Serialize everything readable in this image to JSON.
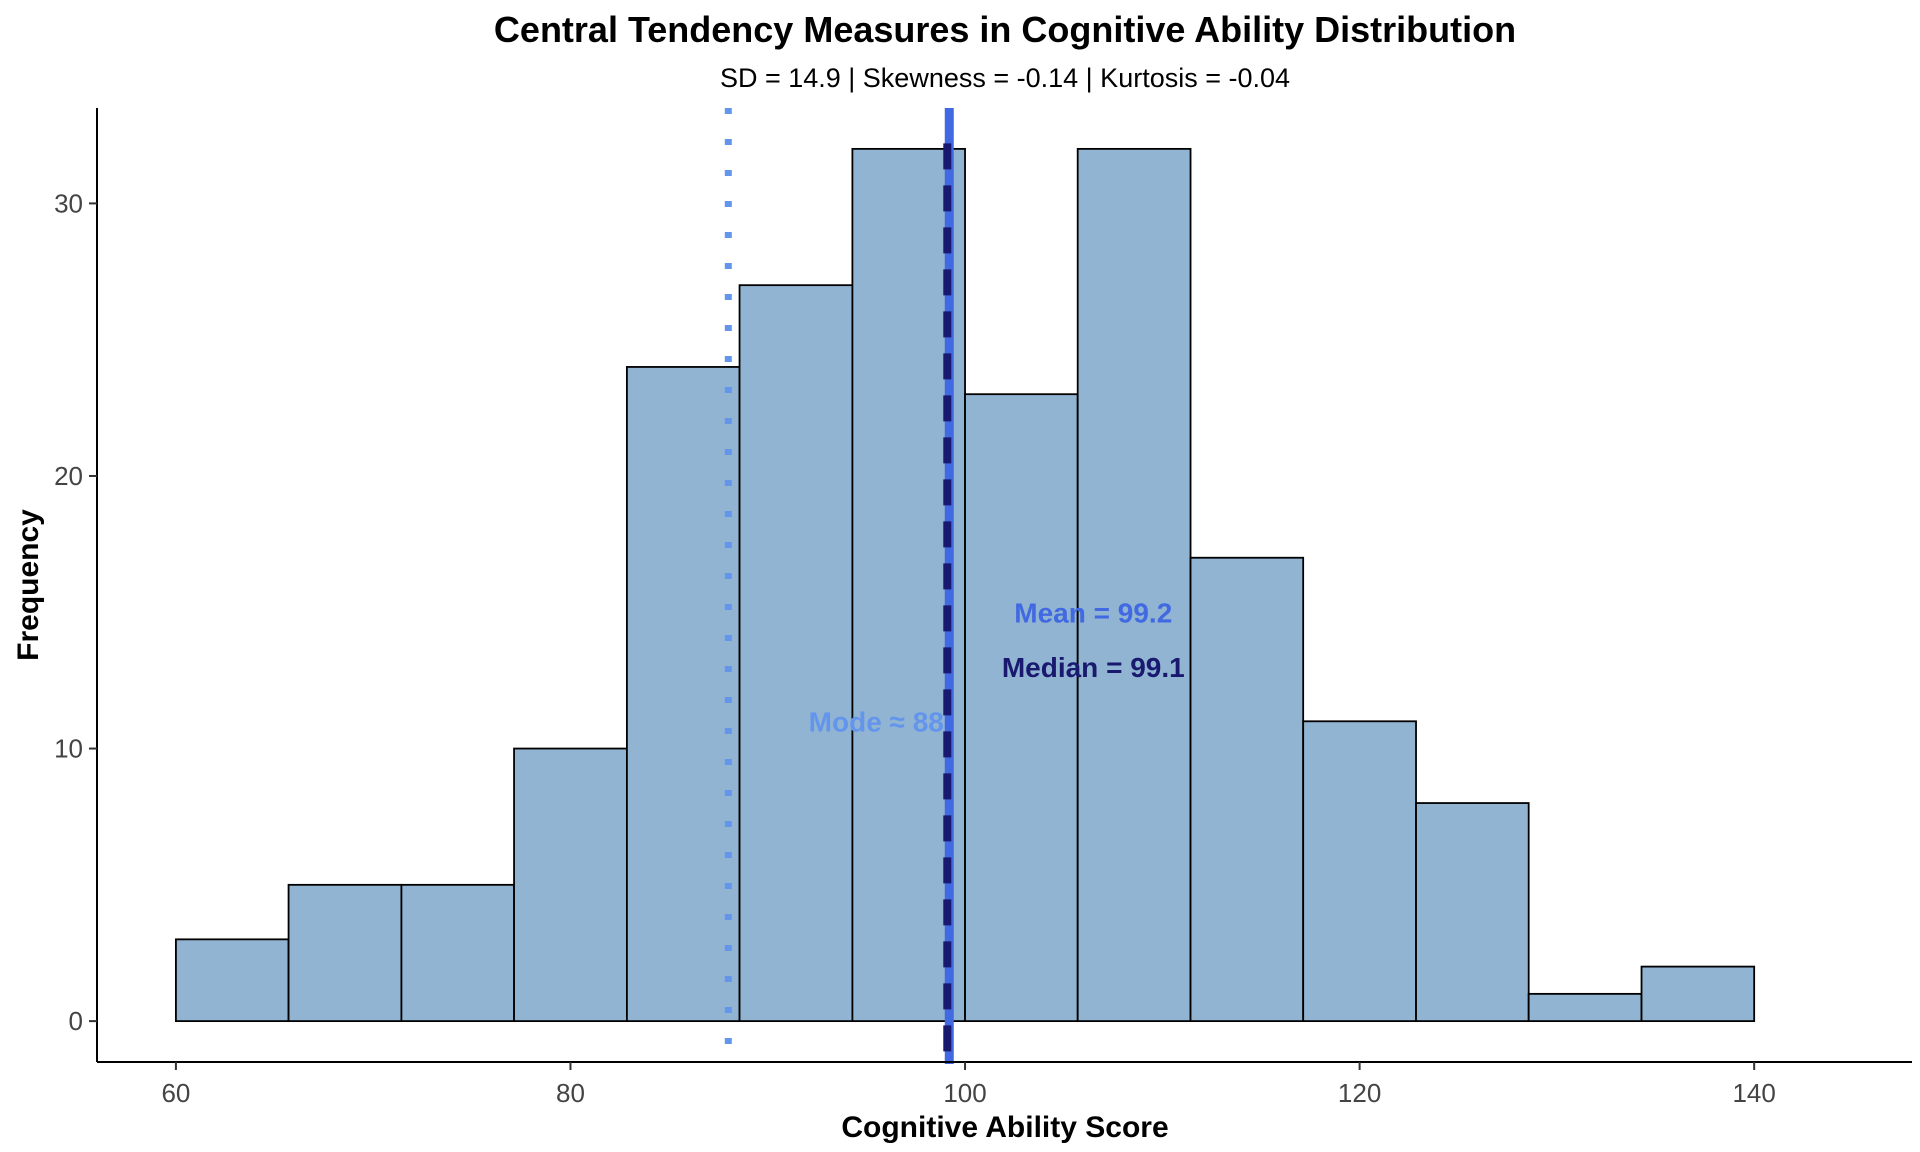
{
  "chart_data": {
    "type": "bar",
    "title": "Central Tendency Measures in Cognitive Ability Distribution",
    "subtitle": "SD = 14.9 | Skewness = -0.14 | Kurtosis = -0.04",
    "xlabel": "Cognitive Ability Score",
    "ylabel": "Frequency",
    "xlim": [
      56,
      148
    ],
    "ylim": [
      -1.5,
      33.5
    ],
    "x_ticks": [
      60,
      80,
      100,
      120,
      140
    ],
    "x_tick_labels": [
      "60",
      "80",
      "100",
      "120",
      "140"
    ],
    "y_ticks": [
      0,
      10,
      20,
      30
    ],
    "y_tick_labels": [
      "0",
      "10",
      "20",
      "30"
    ],
    "grid": false,
    "legend": "none",
    "bins": {
      "start": 60,
      "end": 140,
      "edges": [
        60,
        65.71,
        71.43,
        77.14,
        82.86,
        88.57,
        94.29,
        100,
        105.71,
        111.43,
        117.14,
        122.86,
        128.57,
        134.29,
        140
      ],
      "counts": [
        3,
        5,
        5,
        10,
        24,
        27,
        32,
        23,
        32,
        17,
        11,
        8,
        1,
        2
      ]
    },
    "lines": [
      {
        "name": "Mode",
        "x": 88,
        "style": "dotted",
        "color": "#6495ED"
      },
      {
        "name": "Mean",
        "x": 99.2,
        "style": "solid",
        "color": "#4169E1"
      },
      {
        "name": "Median",
        "x": 99.1,
        "style": "dashed",
        "color": "#191970"
      }
    ],
    "annotations": [
      {
        "text": "Mean = 99.2",
        "x": 106.5,
        "y": 15,
        "color": "#4169E1"
      },
      {
        "text": "Median = 99.1",
        "x": 106.5,
        "y": 13,
        "color": "#191970"
      },
      {
        "text": "Mode ≈ 88",
        "x": 95.5,
        "y": 11,
        "color": "#6495ED"
      }
    ],
    "colors": {
      "bar_fill": "#91B4D2",
      "bar_stroke": "#000000"
    }
  }
}
